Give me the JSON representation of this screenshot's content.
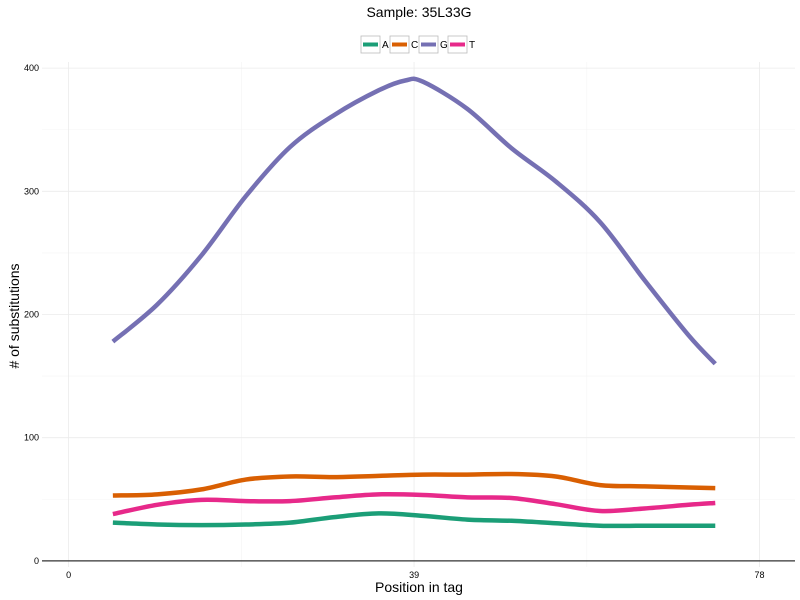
{
  "chart_data": {
    "type": "line",
    "title": "Sample: 35L33G",
    "xlabel": "Position in tag",
    "ylabel": "# of substitutions",
    "xlim": [
      -3,
      82
    ],
    "ylim": [
      -5,
      405
    ],
    "x_ticks": [
      0,
      39,
      78
    ],
    "x_minor_ticks": [
      19.5,
      58.5
    ],
    "y_ticks": [
      0,
      100,
      200,
      300,
      400
    ],
    "y_minor_ticks": [
      50,
      150,
      250,
      350
    ],
    "grid": true,
    "legend_position": "top",
    "series": [
      {
        "name": "A",
        "color": "#1b9e77",
        "x": [
          5,
          10,
          15,
          20,
          25,
          30,
          35,
          40,
          45,
          50,
          55,
          60,
          65,
          70,
          73
        ],
        "y": [
          31,
          29.5,
          29,
          29.5,
          31,
          35.5,
          38.5,
          36.5,
          33.5,
          32.5,
          30.5,
          28.5,
          28.5,
          28.5,
          28.5
        ]
      },
      {
        "name": "C",
        "color": "#d95f02",
        "x": [
          5,
          10,
          15,
          20,
          25,
          30,
          35,
          40,
          45,
          50,
          55,
          60,
          65,
          70,
          73
        ],
        "y": [
          53,
          54,
          58,
          66,
          68.5,
          68,
          69,
          70,
          70,
          70.5,
          68.5,
          61.5,
          60.5,
          59.5,
          59
        ]
      },
      {
        "name": "G",
        "color": "#7570b3",
        "x": [
          5,
          10,
          15,
          20,
          25,
          30,
          35,
          38,
          40,
          45,
          50,
          55,
          60,
          65,
          70,
          73
        ],
        "y": [
          178,
          208,
          248,
          296,
          336,
          362,
          382,
          390,
          389,
          367,
          335,
          308,
          275,
          228,
          183,
          160
        ]
      },
      {
        "name": "T",
        "color": "#e7298a",
        "x": [
          5,
          10,
          15,
          20,
          25,
          30,
          35,
          40,
          45,
          50,
          55,
          60,
          65,
          70,
          73
        ],
        "y": [
          38,
          45.5,
          49.5,
          48.5,
          48.5,
          51.5,
          54,
          53.5,
          51.5,
          51,
          46,
          40.5,
          42.5,
          45.5,
          47
        ]
      }
    ]
  }
}
